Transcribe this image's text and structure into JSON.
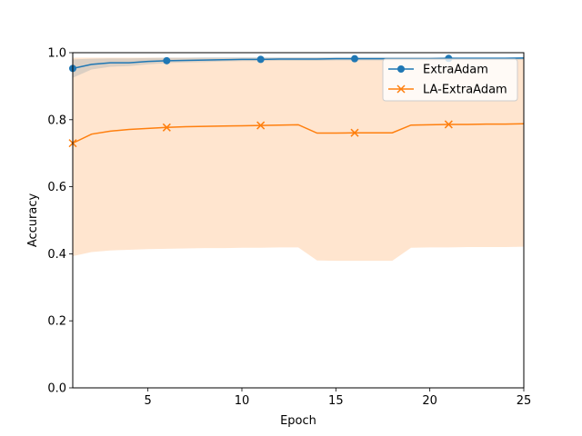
{
  "chart_data": {
    "type": "line",
    "xlabel": "Epoch",
    "ylabel": "Accuracy",
    "xlim": [
      1,
      25
    ],
    "ylim": [
      0.0,
      1.0
    ],
    "xticks": [
      5,
      10,
      15,
      20,
      25
    ],
    "yticks": [
      0.0,
      0.2,
      0.4,
      0.6,
      0.8,
      1.0
    ],
    "xtick_labels": [
      "5",
      "10",
      "15",
      "20",
      "25"
    ],
    "ytick_labels": [
      "0.0",
      "0.2",
      "0.4",
      "0.6",
      "0.8",
      "1.0"
    ],
    "grid": false,
    "legend_position": "top-right",
    "x": [
      1,
      2,
      3,
      4,
      5,
      6,
      7,
      8,
      9,
      10,
      11,
      12,
      13,
      14,
      15,
      16,
      17,
      18,
      19,
      20,
      21,
      22,
      23,
      24,
      25
    ],
    "series": [
      {
        "name": "ExtraAdam",
        "color": "#1f77b4",
        "marker": "circle",
        "marker_every": [
          1,
          6,
          11,
          16,
          21
        ],
        "values": [
          0.953,
          0.965,
          0.97,
          0.97,
          0.974,
          0.976,
          0.977,
          0.978,
          0.979,
          0.98,
          0.98,
          0.981,
          0.981,
          0.981,
          0.982,
          0.982,
          0.982,
          0.982,
          0.982,
          0.982,
          0.983,
          0.983,
          0.983,
          0.983,
          0.984
        ],
        "band_lower": [
          0.925,
          0.95,
          0.958,
          0.96,
          0.965,
          0.969,
          0.971,
          0.972,
          0.974,
          0.975,
          0.975,
          0.976,
          0.976,
          0.976,
          0.977,
          0.977,
          0.977,
          0.977,
          0.977,
          0.977,
          0.978,
          0.978,
          0.978,
          0.978,
          0.979
        ],
        "band_upper": [
          0.98,
          0.982,
          0.983,
          0.983,
          0.984,
          0.985,
          0.985,
          0.986,
          0.986,
          0.986,
          0.986,
          0.986,
          0.986,
          0.986,
          0.987,
          0.987,
          0.987,
          0.987,
          0.987,
          0.987,
          0.987,
          0.987,
          0.987,
          0.987,
          0.987
        ]
      },
      {
        "name": "LA-ExtraAdam",
        "color": "#ff7f0e",
        "marker": "x",
        "marker_every": [
          1,
          6,
          11,
          16,
          21
        ],
        "values": [
          0.73,
          0.757,
          0.766,
          0.771,
          0.774,
          0.777,
          0.779,
          0.78,
          0.781,
          0.782,
          0.783,
          0.784,
          0.785,
          0.76,
          0.76,
          0.761,
          0.761,
          0.761,
          0.784,
          0.785,
          0.786,
          0.786,
          0.787,
          0.787,
          0.788
        ],
        "band_lower": [
          0.393,
          0.405,
          0.41,
          0.412,
          0.414,
          0.415,
          0.416,
          0.417,
          0.417,
          0.418,
          0.418,
          0.419,
          0.419,
          0.38,
          0.379,
          0.379,
          0.379,
          0.379,
          0.418,
          0.419,
          0.419,
          0.42,
          0.42,
          0.42,
          0.421
        ],
        "band_upper": [
          0.985,
          0.985,
          0.985,
          0.985,
          0.985,
          0.985,
          0.985,
          0.985,
          0.985,
          0.985,
          0.985,
          0.985,
          0.985,
          0.985,
          0.985,
          0.985,
          0.985,
          0.985,
          0.985,
          0.985,
          0.985,
          0.985,
          0.985,
          0.985,
          0.985
        ]
      }
    ]
  }
}
